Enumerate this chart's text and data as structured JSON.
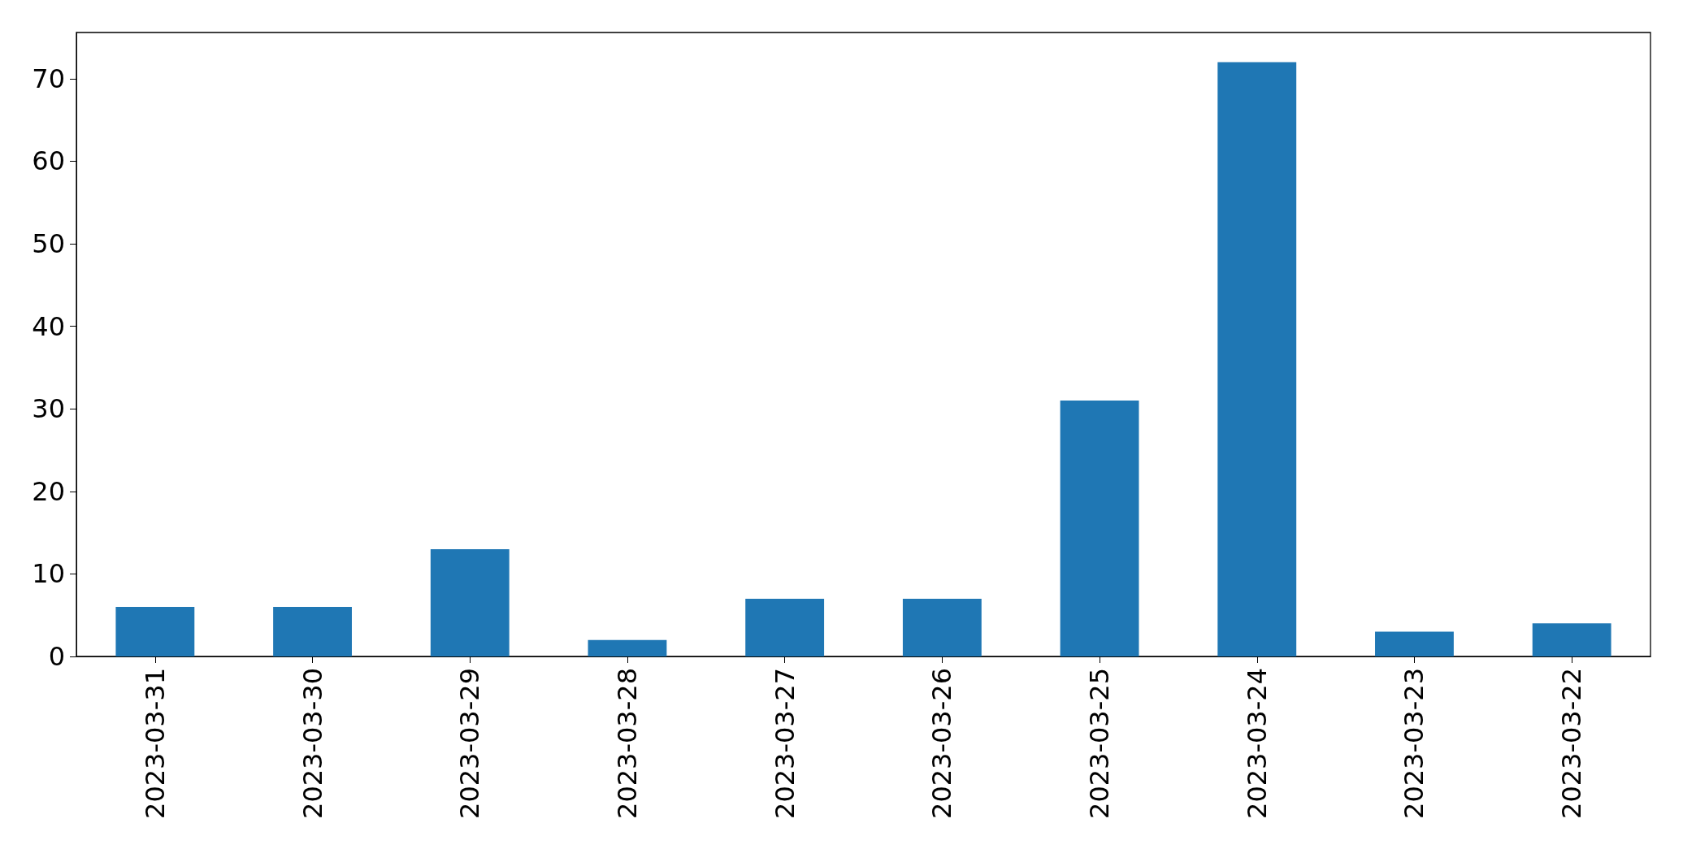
{
  "chart_data": {
    "type": "bar",
    "categories": [
      "2023-03-31",
      "2023-03-30",
      "2023-03-29",
      "2023-03-28",
      "2023-03-27",
      "2023-03-26",
      "2023-03-25",
      "2023-03-24",
      "2023-03-23",
      "2023-03-22"
    ],
    "values": [
      6,
      6,
      13,
      2,
      7,
      7,
      31,
      72,
      3,
      4
    ],
    "color": "#1f77b4",
    "ylim": [
      0,
      75.6
    ],
    "yticks": [
      0,
      10,
      20,
      30,
      40,
      50,
      60,
      70
    ],
    "grid": false
  }
}
